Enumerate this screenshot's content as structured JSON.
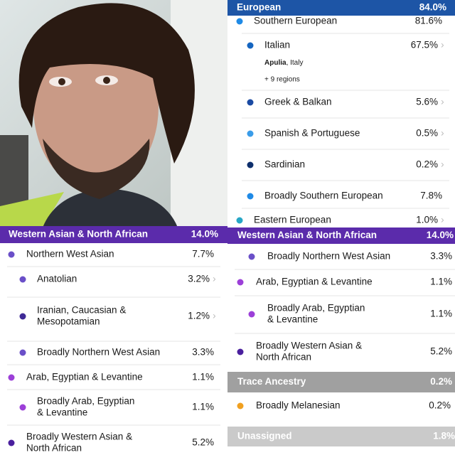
{
  "panels": [
    {
      "header": {
        "name": "European",
        "percent": "84.0%",
        "color": "#1d55a6"
      },
      "rows": [
        {
          "name": [
            "Southern European"
          ],
          "percent": "81.6%",
          "color": "#1f8ae6"
        },
        {
          "name": [
            "Italian"
          ],
          "percent": "67.5%",
          "color": "#1565c0",
          "region": "Apulia",
          "region_rest": ", Italy",
          "more": "+ 9 regions"
        },
        {
          "name": [
            "Greek & Balkan"
          ],
          "percent": "5.6%",
          "color": "#1a4aa3"
        },
        {
          "name": [
            "Spanish & Portuguese"
          ],
          "percent": "0.5%",
          "color": "#3a9ce9"
        },
        {
          "name": [
            "Sardinian"
          ],
          "percent": "0.2%",
          "color": "#0e2f6c"
        },
        {
          "name": [
            "Broadly Southern European"
          ],
          "percent": "7.8%",
          "color": "#1f8ae6"
        },
        {
          "name": [
            "Eastern European"
          ],
          "percent": "1.0%",
          "color": "#27a6c6"
        }
      ]
    },
    {
      "header": {
        "name": "Western Asian & North African",
        "percent": "14.0%",
        "color": "#5b2bab"
      },
      "rows": [
        {
          "name": [
            "Northern West Asian"
          ],
          "percent": "7.7%",
          "color": "#6a4fc8"
        },
        {
          "name": [
            "Anatolian"
          ],
          "percent": "3.2%",
          "color": "#6a4fc8"
        },
        {
          "name": [
            "Iranian, Caucasian &",
            "Mesopotamian"
          ],
          "percent": "1.2%",
          "color": "#3f2a96"
        },
        {
          "name": [
            "Broadly Northern West Asian"
          ],
          "percent": "3.3%",
          "color": "#6a4fc8"
        },
        {
          "name": [
            "Arab, Egyptian & Levantine"
          ],
          "percent": "1.1%",
          "color": "#9c3fd8"
        },
        {
          "name": [
            "Broadly Arab, Egyptian",
            "& Levantine"
          ],
          "percent": "1.1%",
          "color": "#9c3fd8"
        },
        {
          "name": [
            "Broadly Western Asian &",
            "North African"
          ],
          "percent": "5.2%",
          "color": "#4a1f9e"
        }
      ]
    },
    {
      "header": {
        "name": "Western Asian & North African",
        "percent": "14.0%",
        "color": "#5b2bab"
      },
      "rows": [
        {
          "name": [
            "Broadly Northern West Asian"
          ],
          "percent": "3.3%",
          "color": "#6a4fc8"
        },
        {
          "name": [
            "Arab, Egyptian & Levantine"
          ],
          "percent": "1.1%",
          "color": "#9c3fd8"
        },
        {
          "name": [
            "Broadly Arab, Egyptian",
            "& Levantine"
          ],
          "percent": "1.1%",
          "color": "#9c3fd8"
        },
        {
          "name": [
            "Broadly Western Asian &",
            "North African"
          ],
          "percent": "5.2%",
          "color": "#4a1f9e"
        }
      ],
      "trace": {
        "header": {
          "name": "Trace Ancestry",
          "percent": "0.2%",
          "color": "#a0a0a0"
        },
        "rows": [
          {
            "name": [
              "Broadly Melanesian"
            ],
            "percent": "0.2%",
            "color": "#f0a020"
          }
        ]
      },
      "unassigned": {
        "name": "Unassigned",
        "percent": "1.8%",
        "color": "#cacaca"
      }
    }
  ]
}
